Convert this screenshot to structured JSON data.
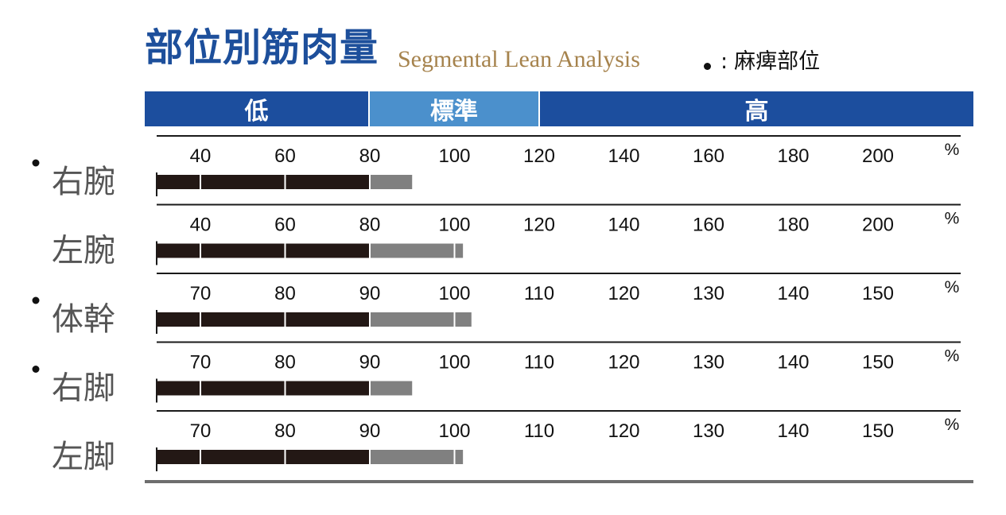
{
  "header": {
    "title_ja": "部位別筋肉量",
    "title_en": "Segmental Lean Analysis",
    "legend_symbol": "•",
    "legend_sep": ":",
    "legend_text": "麻痺部位"
  },
  "bands": {
    "low": "低",
    "standard": "標準",
    "high": "高"
  },
  "colors": {
    "title": "#1d4f9b",
    "subtitle": "#a6834d",
    "band_low_high": "#1c4e9e",
    "band_standard": "#4b90cc",
    "bar_below_standard": "#231815",
    "bar_in_standard": "#808080"
  },
  "chart_data": {
    "type": "bar",
    "orientation": "horizontal",
    "unit": "%",
    "rows": [
      {
        "label": "右腕",
        "marked": true,
        "ticks": [
          "40",
          "60",
          "80",
          "100",
          "120",
          "140",
          "160",
          "180",
          "200"
        ],
        "axis_min": 40,
        "axis_step": 20,
        "standard_range": [
          80,
          120
        ],
        "value": 90
      },
      {
        "label": "左腕",
        "marked": false,
        "ticks": [
          "40",
          "60",
          "80",
          "100",
          "120",
          "140",
          "160",
          "180",
          "200"
        ],
        "axis_min": 40,
        "axis_step": 20,
        "standard_range": [
          80,
          120
        ],
        "value": 102
      },
      {
        "label": "体幹",
        "marked": true,
        "ticks": [
          "70",
          "80",
          "90",
          "100",
          "110",
          "120",
          "130",
          "140",
          "150"
        ],
        "axis_min": 70,
        "axis_step": 10,
        "standard_range": [
          90,
          110
        ],
        "value": 102
      },
      {
        "label": "右脚",
        "marked": true,
        "ticks": [
          "70",
          "80",
          "90",
          "100",
          "110",
          "120",
          "130",
          "140",
          "150"
        ],
        "axis_min": 70,
        "axis_step": 10,
        "standard_range": [
          90,
          110
        ],
        "value": 95
      },
      {
        "label": "左脚",
        "marked": false,
        "ticks": [
          "70",
          "80",
          "90",
          "100",
          "110",
          "120",
          "130",
          "140",
          "150"
        ],
        "axis_min": 70,
        "axis_step": 10,
        "standard_range": [
          90,
          110
        ],
        "value": 101
      }
    ]
  }
}
